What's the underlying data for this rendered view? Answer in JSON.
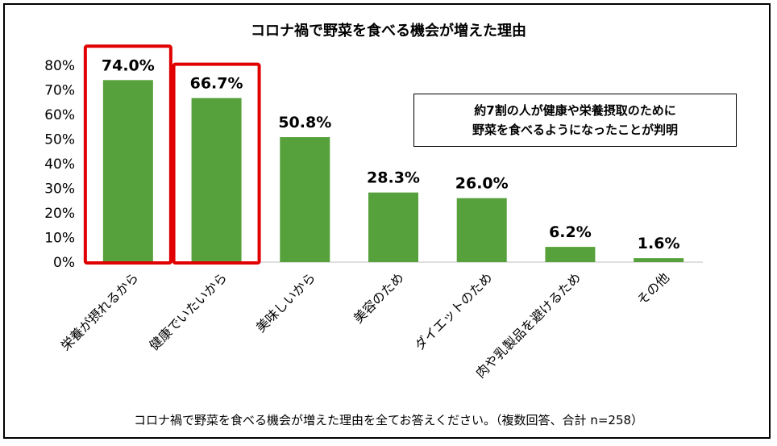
{
  "title": "コロナ禍で野菜を食べる機会が増えた理由",
  "callout": {
    "line1": "約7割の人が健康や栄養摂取のために",
    "line2": "野菜を食べるようになったことが判明"
  },
  "footnote": "コロナ禍で野菜を食べる機会が増えた理由を全てお答えください。（複数回答、合計 n=258）",
  "colors": {
    "bar": "#56a13b",
    "highlight": "#e00000",
    "axis": "#bfbfbf"
  },
  "chart_data": {
    "type": "bar",
    "title": "コロナ禍で野菜を食べる機会が増えた理由",
    "xlabel": "",
    "ylabel": "",
    "categories": [
      "栄養が摂れるから",
      "健康でいたいから",
      "美味しいから",
      "美容のため",
      "ダイエットのため",
      "肉や乳製品を避けるため",
      "その他"
    ],
    "values": [
      74.0,
      66.7,
      50.8,
      28.3,
      26.0,
      6.2,
      1.6
    ],
    "data_labels": [
      "74.0%",
      "66.7%",
      "50.8%",
      "28.3%",
      "26.0%",
      "6.2%",
      "1.6%"
    ],
    "yticks": [
      "0%",
      "10%",
      "20%",
      "30%",
      "40%",
      "50%",
      "60%",
      "70%",
      "80%"
    ],
    "ylim": [
      0,
      80
    ],
    "highlighted": [
      "栄養が摂れるから",
      "健康でいたいから"
    ],
    "grid": false,
    "legend": "none"
  }
}
